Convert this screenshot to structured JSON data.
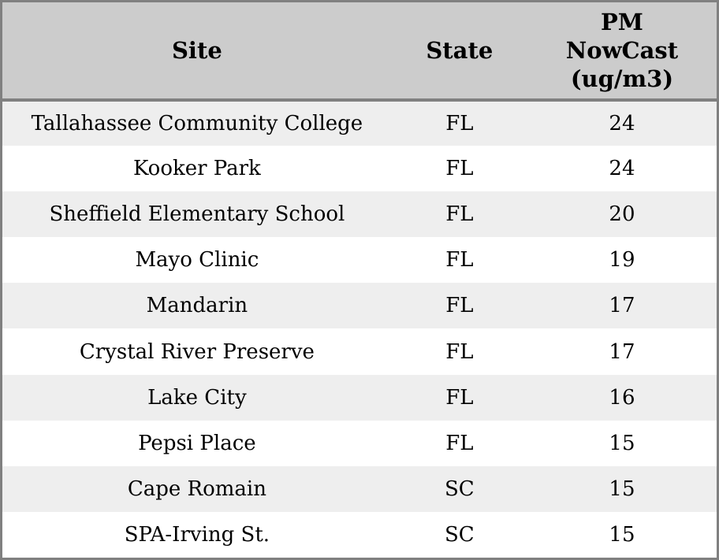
{
  "colors": {
    "header_bg": "#cccccc",
    "row_odd_bg": "#eeeeee",
    "row_even_bg": "#ffffff",
    "border": "#808080",
    "text": "#000000"
  },
  "table": {
    "columns": {
      "site_label": "Site",
      "state_label": "State",
      "pm_label": "PM\nNowCast\n(ug/m3)"
    },
    "rows": [
      {
        "site": "Tallahassee Community College",
        "state": "FL",
        "pm_nowcast": "24"
      },
      {
        "site": "Kooker Park",
        "state": "FL",
        "pm_nowcast": "24"
      },
      {
        "site": "Sheffield Elementary School",
        "state": "FL",
        "pm_nowcast": "20"
      },
      {
        "site": "Mayo Clinic",
        "state": "FL",
        "pm_nowcast": "19"
      },
      {
        "site": "Mandarin",
        "state": "FL",
        "pm_nowcast": "17"
      },
      {
        "site": "Crystal River Preserve",
        "state": "FL",
        "pm_nowcast": "17"
      },
      {
        "site": "Lake City",
        "state": "FL",
        "pm_nowcast": "16"
      },
      {
        "site": "Pepsi Place",
        "state": "FL",
        "pm_nowcast": "15"
      },
      {
        "site": "Cape Romain",
        "state": "SC",
        "pm_nowcast": "15"
      },
      {
        "site": "SPA-Irving St.",
        "state": "SC",
        "pm_nowcast": "15"
      }
    ]
  },
  "chart_data": {
    "type": "table",
    "title": "",
    "columns": [
      "Site",
      "State",
      "PM NowCast (ug/m3)"
    ],
    "rows": [
      [
        "Tallahassee Community College",
        "FL",
        24
      ],
      [
        "Kooker Park",
        "FL",
        24
      ],
      [
        "Sheffield Elementary School",
        "FL",
        20
      ],
      [
        "Mayo Clinic",
        "FL",
        19
      ],
      [
        "Mandarin",
        "FL",
        17
      ],
      [
        "Crystal River Preserve",
        "FL",
        17
      ],
      [
        "Lake City",
        "FL",
        16
      ],
      [
        "Pepsi Place",
        "FL",
        15
      ],
      [
        "Cape Romain",
        "SC",
        15
      ],
      [
        "SPA-Irving St.",
        "SC",
        15
      ]
    ]
  }
}
